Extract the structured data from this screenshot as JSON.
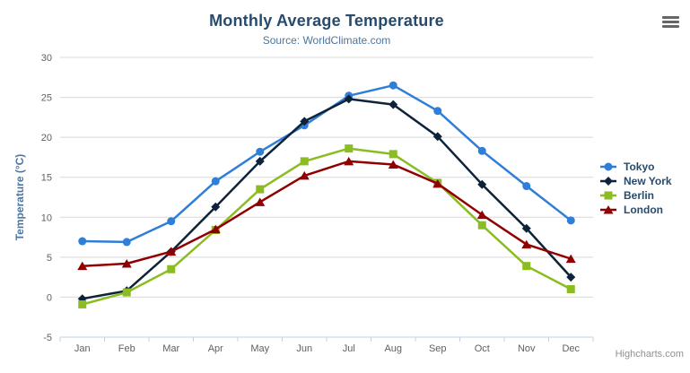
{
  "chart_data": {
    "type": "line",
    "title": "Monthly Average Temperature",
    "subtitle": "Source: WorldClimate.com",
    "categories": [
      "Jan",
      "Feb",
      "Mar",
      "Apr",
      "May",
      "Jun",
      "Jul",
      "Aug",
      "Sep",
      "Oct",
      "Nov",
      "Dec"
    ],
    "xlabel": "",
    "ylabel": "Temperature (°C)",
    "ylim": [
      -5,
      30
    ],
    "ytick_step": 5,
    "grid": true,
    "legend_position": "right",
    "series": [
      {
        "name": "Tokyo",
        "color": "#2f7ed8",
        "marker": "circle",
        "values": [
          7.0,
          6.9,
          9.5,
          14.5,
          18.2,
          21.5,
          25.2,
          26.5,
          23.3,
          18.3,
          13.9,
          9.6
        ]
      },
      {
        "name": "New York",
        "color": "#0d233a",
        "marker": "diamond",
        "values": [
          -0.2,
          0.8,
          5.7,
          11.3,
          17.0,
          22.0,
          24.8,
          24.1,
          20.1,
          14.1,
          8.6,
          2.5
        ]
      },
      {
        "name": "Berlin",
        "color": "#8bbc21",
        "marker": "square",
        "values": [
          -0.9,
          0.6,
          3.5,
          8.4,
          13.5,
          17.0,
          18.6,
          17.9,
          14.3,
          9.0,
          3.9,
          1.0
        ]
      },
      {
        "name": "London",
        "color": "#910000",
        "marker": "triangle",
        "values": [
          3.9,
          4.2,
          5.7,
          8.5,
          11.9,
          15.2,
          17.0,
          16.6,
          14.2,
          10.3,
          6.6,
          4.8
        ]
      }
    ]
  },
  "credits": {
    "label": "Highcharts.com"
  },
  "export_menu": {
    "icon": "hamburger-icon"
  },
  "colors": {
    "title": "#274b6d",
    "subtitle": "#4d759e",
    "axis_title": "#4d759e",
    "tick_label": "#606060",
    "grid_line": "#d8d8d8",
    "axis_line": "#c0d0e0",
    "legend_text": "#274b6d",
    "credits_text": "#909090",
    "menu_icon": "#666666"
  }
}
